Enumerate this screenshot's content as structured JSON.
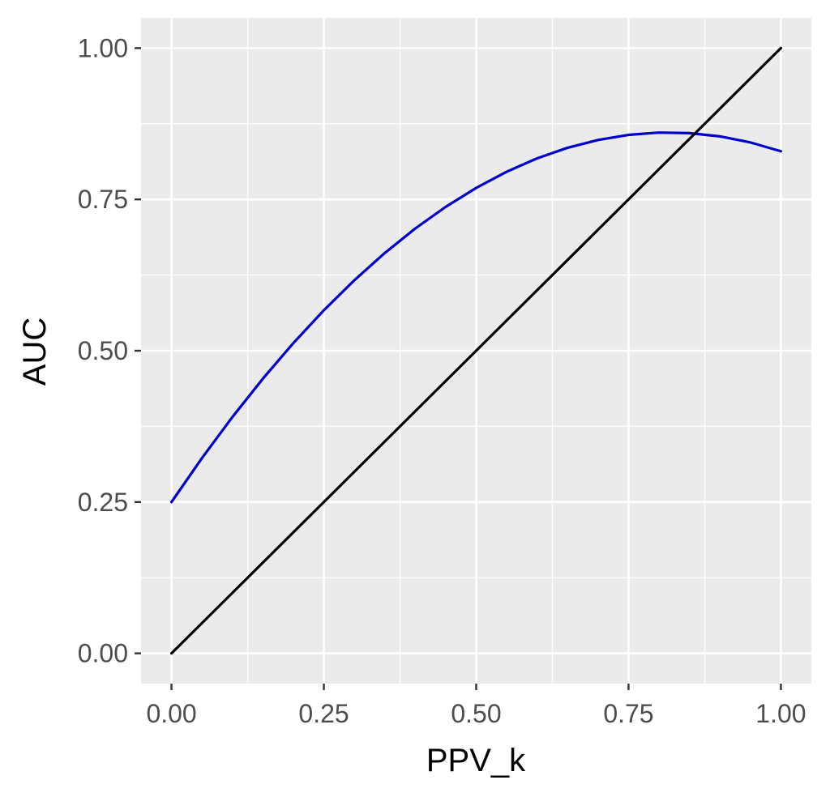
{
  "chart_data": {
    "type": "line",
    "title": "",
    "xlabel": "PPV_k",
    "ylabel": "AUC",
    "xlim": [
      -0.05,
      1.05
    ],
    "ylim": [
      -0.05,
      1.05
    ],
    "x_ticks": [
      0.0,
      0.25,
      0.5,
      0.75,
      1.0
    ],
    "x_tick_labels": [
      "0.00",
      "0.25",
      "0.50",
      "0.75",
      "1.00"
    ],
    "y_ticks": [
      0.0,
      0.25,
      0.5,
      0.75,
      1.0
    ],
    "y_tick_labels": [
      "0.00",
      "0.25",
      "0.50",
      "0.75",
      "1.00"
    ],
    "grid": true,
    "legend": "none",
    "series": [
      {
        "color": "#0000cc",
        "x": [
          0.0,
          0.05,
          0.1,
          0.15,
          0.2,
          0.25,
          0.3,
          0.35,
          0.4,
          0.45,
          0.5,
          0.55,
          0.6,
          0.65,
          0.7,
          0.75,
          0.8,
          0.85,
          0.9,
          0.95,
          1.0
        ],
        "y": [
          0.25,
          0.3226,
          0.3905,
          0.4539,
          0.5126,
          0.5668,
          0.6164,
          0.6615,
          0.7019,
          0.7377,
          0.769,
          0.7957,
          0.8178,
          0.8353,
          0.8482,
          0.8566,
          0.8604,
          0.8595,
          0.8541,
          0.8441,
          0.8295
        ]
      },
      {
        "color": "#000000",
        "x": [
          0.0,
          1.0
        ],
        "y": [
          0.0,
          1.0
        ]
      }
    ]
  }
}
